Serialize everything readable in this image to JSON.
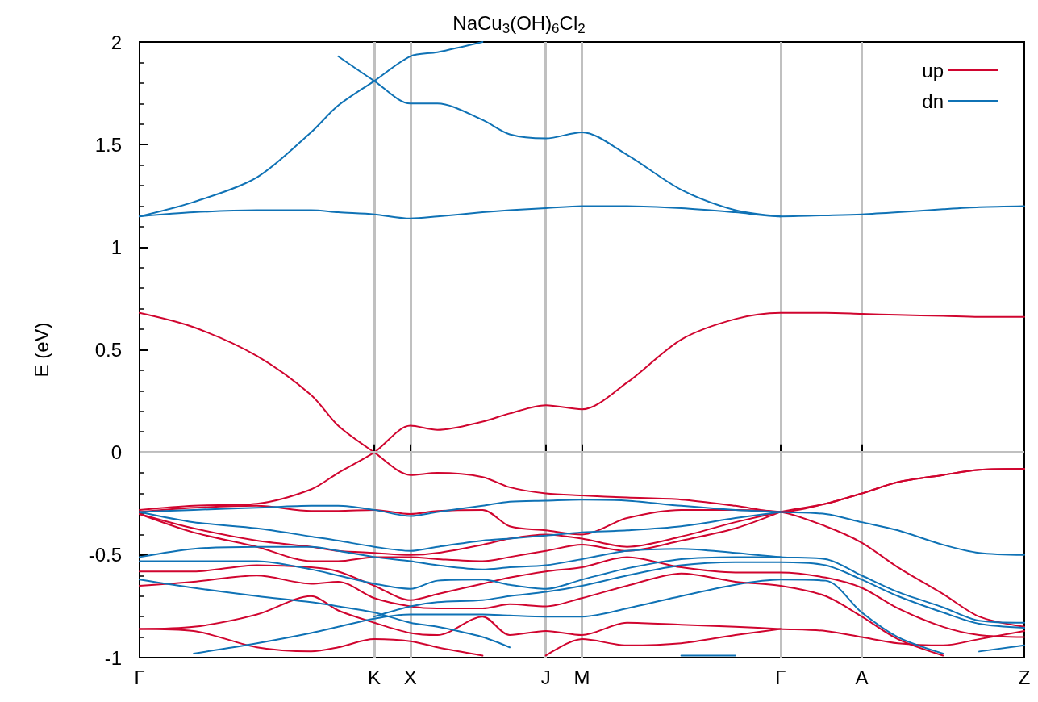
{
  "chart_data": {
    "type": "line",
    "title": "NaCu$_{3}$(OH)$_{6}$Cl$_{2}$",
    "ylabel": "E (eV)",
    "categories": [
      "Γ",
      null,
      null,
      null,
      null,
      null,
      null,
      null,
      null,
      null,
      null,
      null,
      null,
      null,
      null,
      null,
      null,
      null,
      null,
      null,
      null,
      null,
      null,
      null,
      null,
      null,
      "K",
      null,
      null,
      null,
      "X",
      null,
      null,
      null,
      null,
      null,
      null,
      null,
      null,
      null,
      null,
      null,
      null,
      null,
      null,
      "J",
      null,
      null,
      null,
      "M",
      null,
      null,
      null,
      null,
      null,
      null,
      null,
      null,
      null,
      null,
      null,
      null,
      null,
      null,
      null,
      null,
      null,
      null,
      null,
      null,
      null,
      "Γ",
      null,
      null,
      null,
      null,
      null,
      null,
      null,
      null,
      "A",
      null,
      null,
      null,
      null,
      null,
      null,
      null,
      null,
      null,
      null,
      null,
      null,
      null,
      null,
      null,
      null,
      null,
      "Z"
    ],
    "ylim": [
      -1,
      2
    ],
    "yticks": [
      -1,
      -0.5,
      0,
      0.5,
      1,
      1.5,
      2
    ],
    "grid": "x",
    "legend": "top right",
    "marker": "none",
    "ref_lines": [
      {
        "axis": "y",
        "value": 0,
        "color": "#c0c0c0"
      }
    ],
    "series": [
      {
        "name": "up",
        "color": "#d0052f",
        "values": [
          0.68,
          null,
          null,
          null,
          null,
          null,
          0.61,
          null,
          null,
          null,
          null,
          null,
          null,
          0.47,
          null,
          null,
          null,
          null,
          null,
          0.28,
          null,
          null,
          0.13,
          null,
          null,
          null,
          0.0,
          null,
          null,
          null,
          -0.11,
          null,
          null,
          -0.1,
          null,
          null,
          null,
          null,
          -0.12,
          null,
          null,
          -0.17,
          null,
          null,
          null,
          -0.2,
          null,
          null,
          null,
          -0.21,
          null,
          null,
          null,
          null,
          -0.22,
          null,
          null,
          null,
          null,
          null,
          -0.23,
          null,
          null,
          null,
          null,
          null,
          -0.26,
          null,
          null,
          null,
          null,
          -0.29,
          null,
          null,
          null,
          null,
          -0.25,
          null,
          null,
          null,
          -0.2,
          null,
          null,
          null,
          -0.145,
          null,
          null,
          null,
          null,
          -0.11,
          null,
          null,
          null,
          -0.085,
          null,
          null,
          null,
          null,
          -0.08
        ]
      },
      {
        "color": "#d0052f",
        "values": [
          -0.28,
          null,
          null,
          null,
          null,
          null,
          -0.26,
          null,
          null,
          null,
          null,
          null,
          null,
          -0.25,
          null,
          null,
          null,
          null,
          null,
          -0.18,
          null,
          null,
          -0.1,
          null,
          null,
          null,
          0.0,
          null,
          null,
          null,
          0.13,
          null,
          null,
          0.11,
          null,
          null,
          null,
          null,
          0.15,
          null,
          null,
          0.19,
          null,
          null,
          null,
          0.23,
          null,
          null,
          null,
          0.21,
          null,
          null,
          null,
          null,
          0.34,
          null,
          null,
          null,
          null,
          null,
          0.55,
          null,
          null,
          null,
          null,
          null,
          0.65,
          null,
          null,
          null,
          null,
          0.68,
          null,
          null,
          null,
          null,
          0.68,
          null,
          null,
          null,
          0.675,
          null,
          null,
          null,
          0.67,
          null,
          null,
          null,
          null,
          0.665,
          null,
          null,
          null,
          0.66,
          null,
          null,
          null,
          null,
          0.66
        ]
      },
      {
        "color": "#d0052f",
        "values": [
          -0.29,
          null,
          null,
          null,
          null,
          null,
          -0.27,
          null,
          null,
          null,
          null,
          null,
          null,
          -0.26,
          null,
          null,
          null,
          null,
          null,
          -0.285,
          null,
          null,
          -0.285,
          null,
          null,
          null,
          -0.28,
          null,
          null,
          null,
          -0.3,
          null,
          null,
          -0.285,
          null,
          null,
          null,
          null,
          -0.28,
          null,
          null,
          -0.36,
          null,
          null,
          null,
          -0.38,
          null,
          null,
          null,
          -0.4,
          null,
          null,
          null,
          null,
          -0.32,
          null,
          null,
          null,
          null,
          null,
          -0.28,
          null,
          null,
          null,
          null,
          null,
          -0.28,
          null,
          null,
          null,
          null,
          -0.29,
          null,
          null,
          null,
          null,
          -0.36,
          null,
          null,
          null,
          -0.44,
          null,
          null,
          null,
          -0.56,
          null,
          null,
          null,
          null,
          -0.69,
          null,
          null,
          null,
          -0.8,
          null,
          null,
          null,
          null,
          -0.85
        ]
      },
      {
        "color": "#d0052f",
        "values": [
          -0.3,
          null,
          null,
          null,
          null,
          null,
          -0.37,
          null,
          null,
          null,
          null,
          null,
          null,
          -0.43,
          null,
          null,
          null,
          null,
          null,
          -0.46,
          null,
          null,
          -0.48,
          null,
          null,
          null,
          -0.49,
          null,
          null,
          null,
          -0.5,
          null,
          null,
          -0.49,
          null,
          null,
          null,
          null,
          -0.45,
          null,
          null,
          -0.42,
          null,
          null,
          null,
          -0.4,
          null,
          null,
          null,
          -0.42,
          null,
          null,
          null,
          null,
          -0.46,
          null,
          null,
          null,
          null,
          null,
          -0.41,
          null,
          null,
          null,
          null,
          null,
          -0.34,
          null,
          null,
          null,
          null,
          -0.29,
          null,
          null,
          null,
          null,
          -0.25,
          null,
          null,
          null,
          -0.2,
          null,
          null,
          null,
          -0.145,
          null,
          null,
          null,
          null,
          -0.11,
          null,
          null,
          null,
          -0.085,
          null,
          null,
          null,
          null,
          -0.08
        ]
      },
      {
        "color": "#d0052f",
        "values": [
          -0.3,
          null,
          null,
          null,
          null,
          null,
          -0.39,
          null,
          null,
          null,
          null,
          null,
          null,
          -0.46,
          null,
          null,
          null,
          null,
          null,
          -0.53,
          null,
          null,
          -0.53,
          null,
          null,
          null,
          -0.51,
          null,
          null,
          null,
          -0.51,
          null,
          null,
          -0.52,
          null,
          null,
          null,
          null,
          -0.53,
          null,
          null,
          -0.51,
          null,
          null,
          null,
          -0.48,
          null,
          null,
          null,
          -0.45,
          null,
          null,
          null,
          null,
          -0.48,
          null,
          null,
          null,
          null,
          null,
          -0.43,
          null,
          null,
          null,
          null,
          null,
          -0.37,
          null,
          null,
          null,
          null,
          -0.29,
          null,
          null,
          null,
          null,
          null,
          null,
          null,
          null,
          null,
          null,
          null,
          null,
          null,
          null,
          null,
          null,
          null,
          null,
          null,
          null,
          null,
          null,
          null,
          null,
          null,
          null,
          null
        ]
      },
      {
        "color": "#d0052f",
        "values": [
          -0.58,
          null,
          null,
          null,
          null,
          null,
          -0.58,
          null,
          null,
          null,
          null,
          null,
          null,
          -0.55,
          null,
          null,
          null,
          null,
          null,
          -0.56,
          null,
          null,
          -0.58,
          null,
          null,
          null,
          -0.65,
          null,
          null,
          null,
          -0.72,
          null,
          null,
          -0.69,
          null,
          null,
          null,
          null,
          -0.64,
          null,
          null,
          -0.61,
          null,
          null,
          null,
          -0.58,
          null,
          null,
          null,
          -0.56,
          null,
          null,
          null,
          null,
          -0.51,
          null,
          null,
          null,
          null,
          null,
          -0.56,
          null,
          null,
          null,
          null,
          null,
          -0.585,
          null,
          null,
          null,
          null,
          -0.585,
          null,
          null,
          null,
          null,
          -0.61,
          null,
          null,
          null,
          -0.66,
          null,
          null,
          null,
          -0.76,
          null,
          null,
          null,
          null,
          -0.85,
          null,
          null,
          null,
          -0.89,
          null,
          null,
          null,
          null,
          -0.9
        ]
      },
      {
        "color": "#d0052f",
        "values": [
          -0.65,
          null,
          null,
          null,
          null,
          null,
          -0.63,
          null,
          null,
          null,
          null,
          null,
          null,
          -0.6,
          null,
          null,
          null,
          null,
          null,
          -0.64,
          null,
          null,
          -0.63,
          null,
          null,
          null,
          -0.71,
          null,
          null,
          null,
          -0.75,
          null,
          null,
          -0.76,
          null,
          null,
          null,
          null,
          -0.76,
          null,
          null,
          -0.74,
          null,
          null,
          null,
          -0.75,
          null,
          null,
          null,
          -0.71,
          null,
          null,
          null,
          null,
          -0.65,
          null,
          null,
          null,
          null,
          null,
          -0.59,
          null,
          null,
          null,
          null,
          null,
          -0.63,
          null,
          null,
          null,
          null,
          -0.65,
          null,
          null,
          null,
          null,
          -0.7,
          null,
          null,
          null,
          -0.8,
          null,
          null,
          null,
          -0.91,
          null,
          null,
          null,
          null,
          -0.99,
          null,
          null,
          null,
          null,
          null,
          null,
          null,
          null,
          null
        ]
      },
      {
        "color": "#d0052f",
        "values": [
          -0.86,
          null,
          null,
          null,
          null,
          null,
          -0.85,
          null,
          null,
          null,
          null,
          null,
          null,
          -0.79,
          null,
          null,
          null,
          null,
          null,
          -0.7,
          null,
          null,
          -0.77,
          null,
          null,
          null,
          -0.83,
          null,
          null,
          null,
          -0.88,
          null,
          null,
          -0.89,
          null,
          null,
          null,
          null,
          -0.8,
          null,
          null,
          -0.89,
          null,
          null,
          null,
          -0.87,
          null,
          null,
          null,
          -0.89,
          null,
          null,
          null,
          null,
          -0.83,
          null,
          null,
          null,
          null,
          null,
          -0.84,
          null,
          null,
          null,
          null,
          null,
          -0.85,
          null,
          null,
          null,
          null,
          -0.86,
          null,
          null,
          null,
          null,
          -0.87,
          null,
          null,
          null,
          -0.9,
          null,
          null,
          null,
          -0.93,
          null,
          null,
          null,
          null,
          -0.94,
          null,
          null,
          null,
          -0.91,
          null,
          null,
          null,
          null,
          -0.87
        ]
      },
      {
        "color": "#d0052f",
        "values": [
          -0.86,
          null,
          null,
          null,
          null,
          null,
          -0.87,
          null,
          null,
          null,
          null,
          null,
          null,
          -0.95,
          null,
          null,
          null,
          null,
          null,
          -0.97,
          null,
          null,
          -0.95,
          null,
          null,
          null,
          -0.91,
          null,
          null,
          null,
          -0.92,
          null,
          null,
          -0.95,
          null,
          null,
          null,
          null,
          -0.99,
          null,
          null,
          null,
          null,
          null,
          null,
          null,
          null,
          null,
          null,
          null,
          null,
          null,
          null,
          null,
          null,
          null,
          null,
          null,
          null,
          null,
          null,
          null,
          null,
          null,
          null,
          null,
          null,
          null,
          null,
          null,
          null,
          null,
          null,
          null,
          null,
          null,
          null,
          null,
          null,
          null,
          null,
          null,
          null,
          null,
          null,
          null,
          null,
          null,
          null,
          null,
          null,
          null,
          null,
          null,
          null,
          null,
          null,
          null,
          null
        ]
      },
      {
        "color": "#d0052f",
        "values": [
          null,
          null,
          null,
          null,
          null,
          null,
          null,
          null,
          null,
          null,
          null,
          null,
          null,
          null,
          null,
          null,
          null,
          null,
          null,
          null,
          null,
          null,
          null,
          null,
          null,
          null,
          null,
          null,
          null,
          null,
          null,
          null,
          null,
          null,
          null,
          null,
          null,
          null,
          null,
          null,
          null,
          null,
          null,
          null,
          null,
          -0.99,
          null,
          null,
          null,
          -0.91,
          null,
          null,
          null,
          null,
          -0.94,
          null,
          null,
          null,
          null,
          null,
          -0.93,
          null,
          null,
          null,
          null,
          null,
          -0.89,
          null,
          null,
          null,
          null,
          -0.86,
          null,
          null,
          null,
          null,
          null,
          null,
          null,
          null,
          null,
          null,
          null,
          null,
          null,
          null,
          null,
          null,
          null,
          null,
          null,
          null,
          null,
          null,
          null,
          null,
          null,
          null,
          null
        ]
      },
      {
        "name": "dn",
        "color": "#0f72b5",
        "values": [
          1.15,
          null,
          null,
          null,
          null,
          null,
          1.17,
          null,
          null,
          null,
          null,
          null,
          null,
          1.18,
          null,
          null,
          null,
          null,
          null,
          1.18,
          null,
          null,
          1.17,
          null,
          null,
          null,
          1.16,
          null,
          null,
          null,
          1.14,
          null,
          null,
          1.15,
          null,
          null,
          null,
          null,
          1.17,
          null,
          null,
          1.18,
          null,
          null,
          null,
          1.19,
          null,
          null,
          null,
          1.2,
          null,
          null,
          null,
          null,
          1.2,
          null,
          null,
          null,
          null,
          null,
          1.19,
          null,
          null,
          null,
          null,
          null,
          1.17,
          null,
          null,
          null,
          null,
          1.15,
          null,
          null,
          null,
          null,
          1.155,
          null,
          null,
          null,
          1.16,
          null,
          null,
          null,
          1.17,
          null,
          null,
          null,
          null,
          1.185,
          null,
          null,
          null,
          1.195,
          null,
          null,
          null,
          null,
          1.2
        ]
      },
      {
        "color": "#0f72b5",
        "values": [
          1.15,
          null,
          null,
          null,
          null,
          null,
          1.22,
          null,
          null,
          null,
          null,
          null,
          null,
          1.34,
          null,
          null,
          null,
          null,
          null,
          1.56,
          null,
          null,
          1.69,
          null,
          null,
          null,
          1.81,
          null,
          null,
          null,
          1.93,
          null,
          null,
          1.95,
          null,
          null,
          null,
          null,
          2.0,
          null,
          null,
          null,
          null,
          null,
          null,
          null,
          null,
          null,
          null,
          null,
          null,
          null,
          null,
          null,
          null,
          null,
          null,
          null,
          null,
          null,
          null,
          null,
          null,
          null,
          null,
          null,
          null,
          null,
          null,
          null,
          null,
          null,
          null,
          null,
          null,
          null,
          null,
          null,
          null,
          null,
          null,
          null,
          null,
          null,
          null,
          null,
          null,
          null,
          null,
          null,
          null,
          null,
          null,
          null,
          null,
          null,
          null,
          null,
          null
        ]
      },
      {
        "color": "#0f72b5",
        "values": [
          null,
          null,
          null,
          null,
          null,
          null,
          null,
          null,
          null,
          null,
          null,
          null,
          null,
          null,
          null,
          null,
          null,
          null,
          null,
          null,
          null,
          null,
          1.93,
          null,
          null,
          null,
          1.81,
          null,
          null,
          null,
          1.7,
          null,
          null,
          1.7,
          null,
          null,
          null,
          null,
          1.62,
          null,
          null,
          1.55,
          null,
          null,
          null,
          1.53,
          null,
          null,
          null,
          1.56,
          null,
          null,
          null,
          null,
          1.45,
          null,
          null,
          null,
          null,
          null,
          1.28,
          null,
          null,
          null,
          null,
          null,
          1.18,
          null,
          null,
          null,
          null,
          1.15,
          null,
          null,
          null,
          null,
          null,
          null,
          null,
          null,
          null,
          null,
          null,
          null,
          null,
          null,
          null,
          null,
          null,
          null,
          null,
          null,
          null,
          null,
          null,
          null,
          null,
          null,
          null
        ]
      },
      {
        "color": "#0f72b5",
        "values": [
          -0.29,
          null,
          null,
          null,
          null,
          null,
          -0.28,
          null,
          null,
          null,
          null,
          null,
          null,
          -0.27,
          null,
          null,
          null,
          null,
          null,
          -0.26,
          null,
          null,
          -0.26,
          null,
          null,
          null,
          -0.28,
          null,
          null,
          null,
          -0.31,
          null,
          null,
          -0.29,
          null,
          null,
          null,
          null,
          -0.26,
          null,
          null,
          -0.24,
          null,
          null,
          null,
          -0.235,
          null,
          null,
          null,
          -0.23,
          null,
          null,
          null,
          null,
          -0.235,
          null,
          null,
          null,
          null,
          null,
          -0.26,
          null,
          null,
          null,
          null,
          null,
          -0.28,
          null,
          null,
          null,
          null,
          -0.29,
          null,
          null,
          null,
          null,
          -0.3,
          null,
          null,
          null,
          -0.34,
          null,
          null,
          null,
          -0.38,
          null,
          null,
          null,
          null,
          -0.45,
          null,
          null,
          null,
          -0.49,
          null,
          null,
          null,
          null,
          -0.5
        ]
      },
      {
        "color": "#0f72b5",
        "values": [
          -0.29,
          null,
          null,
          null,
          null,
          null,
          -0.34,
          null,
          null,
          null,
          null,
          null,
          null,
          -0.37,
          null,
          null,
          null,
          null,
          null,
          -0.41,
          null,
          null,
          -0.43,
          null,
          null,
          null,
          -0.46,
          null,
          null,
          null,
          -0.48,
          null,
          null,
          -0.46,
          null,
          null,
          null,
          null,
          -0.43,
          null,
          null,
          -0.42,
          null,
          null,
          null,
          -0.405,
          null,
          null,
          null,
          -0.39,
          null,
          null,
          null,
          null,
          -0.38,
          null,
          null,
          null,
          null,
          null,
          -0.36,
          null,
          null,
          null,
          null,
          null,
          -0.32,
          null,
          null,
          null,
          null,
          -0.29,
          null,
          null,
          null,
          null,
          null,
          null,
          null,
          null,
          null,
          null,
          null,
          null,
          null,
          null,
          null,
          null,
          null,
          null,
          null,
          null,
          null,
          null,
          null,
          null,
          null,
          null,
          null
        ]
      },
      {
        "color": "#0f72b5",
        "values": [
          -0.51,
          null,
          null,
          null,
          null,
          null,
          -0.47,
          null,
          null,
          null,
          null,
          null,
          null,
          -0.46,
          null,
          null,
          null,
          null,
          null,
          -0.46,
          null,
          null,
          -0.48,
          null,
          null,
          null,
          -0.51,
          null,
          null,
          null,
          -0.53,
          null,
          null,
          -0.55,
          null,
          null,
          null,
          null,
          -0.57,
          null,
          null,
          -0.56,
          null,
          null,
          null,
          -0.55,
          null,
          null,
          null,
          -0.52,
          null,
          null,
          null,
          null,
          -0.48,
          null,
          null,
          null,
          null,
          null,
          -0.47,
          null,
          null,
          null,
          null,
          null,
          -0.49,
          null,
          null,
          null,
          null,
          -0.51,
          null,
          null,
          null,
          null,
          -0.52,
          null,
          null,
          null,
          -0.6,
          null,
          null,
          null,
          -0.68,
          null,
          null,
          null,
          null,
          -0.755,
          null,
          null,
          null,
          -0.82,
          null,
          null,
          null,
          null,
          -0.83
        ]
      },
      {
        "color": "#0f72b5",
        "values": [
          -0.53,
          null,
          null,
          null,
          null,
          null,
          -0.53,
          null,
          null,
          null,
          null,
          null,
          null,
          -0.53,
          null,
          null,
          null,
          null,
          null,
          -0.57,
          null,
          null,
          -0.6,
          null,
          null,
          null,
          -0.64,
          null,
          null,
          null,
          -0.665,
          null,
          null,
          -0.625,
          null,
          null,
          null,
          null,
          -0.62,
          null,
          null,
          -0.645,
          null,
          null,
          null,
          -0.665,
          null,
          null,
          null,
          -0.62,
          null,
          null,
          null,
          null,
          -0.565,
          null,
          null,
          null,
          null,
          null,
          -0.52,
          null,
          null,
          null,
          null,
          null,
          -0.51,
          null,
          null,
          null,
          null,
          -0.51,
          null,
          null,
          null,
          null,
          null,
          null,
          null,
          null,
          null,
          null,
          null,
          null,
          null,
          null,
          null,
          null,
          null,
          null,
          null,
          null,
          null,
          null,
          null,
          null,
          null,
          null,
          null
        ]
      },
      {
        "color": "#0f72b5",
        "values": [
          -0.62,
          null,
          null,
          null,
          null,
          null,
          -0.66,
          null,
          null,
          null,
          null,
          null,
          null,
          -0.7,
          null,
          null,
          null,
          null,
          null,
          -0.73,
          null,
          null,
          -0.75,
          null,
          null,
          null,
          -0.78,
          null,
          null,
          null,
          -0.83,
          null,
          null,
          -0.85,
          null,
          null,
          null,
          null,
          -0.9,
          null,
          null,
          -0.95,
          null,
          null,
          null,
          null,
          null,
          null,
          null,
          null,
          null,
          null,
          null,
          null,
          null,
          null,
          null,
          null,
          null,
          null,
          null,
          null,
          null,
          null,
          null,
          null,
          null,
          null,
          null,
          null,
          null,
          null,
          null,
          null,
          null,
          null,
          null,
          null,
          null,
          null,
          null,
          null,
          null,
          null,
          null,
          null,
          null,
          null,
          null,
          null,
          null,
          null,
          null,
          null,
          null,
          null,
          null,
          null,
          null
        ]
      },
      {
        "color": "#0f72b5",
        "values": [
          null,
          null,
          null,
          null,
          null,
          null,
          null,
          null,
          null,
          null,
          null,
          null,
          null,
          null,
          null,
          null,
          null,
          null,
          null,
          null,
          null,
          null,
          null,
          null,
          null,
          null,
          null,
          null,
          null,
          null,
          null,
          null,
          null,
          null,
          null,
          null,
          null,
          null,
          null,
          null,
          null,
          null,
          null,
          null,
          null,
          null,
          null,
          null,
          null,
          null,
          null,
          null,
          null,
          null,
          null,
          null,
          null,
          null,
          null,
          null,
          -0.99,
          null,
          null,
          null,
          null,
          null,
          -0.99,
          null,
          null,
          null,
          null,
          null,
          null,
          null,
          null,
          null,
          null,
          null,
          null,
          null,
          null,
          null,
          null,
          null,
          null,
          null,
          null,
          null,
          null,
          null,
          null,
          null,
          null,
          null,
          null,
          null,
          null,
          null,
          null
        ]
      },
      {
        "color": "#0f72b5",
        "values": [
          null,
          null,
          null,
          null,
          null,
          null,
          null,
          null,
          null,
          null,
          null,
          null,
          null,
          null,
          null,
          null,
          null,
          null,
          null,
          null,
          null,
          null,
          null,
          null,
          null,
          null,
          null,
          null,
          null,
          null,
          null,
          null,
          null,
          null,
          null,
          null,
          null,
          null,
          null,
          null,
          null,
          null,
          null,
          null,
          null,
          null,
          null,
          null,
          null,
          null,
          null,
          null,
          null,
          null,
          null,
          null,
          null,
          null,
          null,
          null,
          null,
          null,
          null,
          null,
          null,
          null,
          null,
          null,
          null,
          null,
          null,
          null,
          null,
          null,
          null,
          null,
          null,
          null,
          null,
          null,
          null,
          null,
          null,
          null,
          null,
          null,
          null,
          null,
          null,
          null,
          null,
          null,
          null,
          -0.97,
          null,
          null,
          null,
          null,
          -0.94
        ]
      },
      {
        "color": "#0f72b5",
        "values": [
          null,
          null,
          null,
          null,
          null,
          null,
          -0.98,
          null,
          null,
          null,
          null,
          null,
          null,
          -0.93,
          null,
          null,
          null,
          null,
          null,
          -0.88,
          null,
          null,
          -0.85,
          null,
          null,
          null,
          -0.81,
          null,
          null,
          null,
          -0.79,
          null,
          null,
          -0.79,
          null,
          null,
          null,
          null,
          -0.79,
          null,
          null,
          -0.795,
          null,
          null,
          null,
          -0.8,
          null,
          null,
          null,
          -0.8,
          null,
          null,
          null,
          null,
          -0.76,
          null,
          null,
          null,
          null,
          null,
          -0.7,
          null,
          null,
          null,
          null,
          null,
          -0.645,
          null,
          null,
          null,
          null,
          -0.62,
          null,
          null,
          null,
          null,
          -0.625,
          null,
          null,
          null,
          -0.78,
          null,
          null,
          null,
          -0.9,
          null,
          null,
          null,
          null,
          -0.98,
          null,
          null,
          null,
          null,
          null,
          null,
          null,
          null,
          null
        ]
      },
      {
        "color": "#0f72b5",
        "values": [
          null,
          null,
          null,
          null,
          null,
          null,
          null,
          null,
          null,
          null,
          null,
          null,
          null,
          null,
          null,
          null,
          null,
          null,
          null,
          null,
          null,
          null,
          null,
          null,
          null,
          null,
          -0.8,
          null,
          null,
          null,
          -0.75,
          null,
          null,
          -0.73,
          null,
          null,
          null,
          null,
          -0.72,
          null,
          null,
          -0.7,
          null,
          null,
          null,
          -0.68,
          null,
          null,
          null,
          -0.65,
          null,
          null,
          null,
          null,
          -0.6,
          null,
          null,
          null,
          null,
          null,
          -0.55,
          null,
          null,
          null,
          null,
          null,
          -0.535,
          null,
          null,
          null,
          null,
          -0.535,
          null,
          null,
          null,
          null,
          -0.55,
          null,
          null,
          null,
          -0.62,
          null,
          null,
          null,
          -0.7,
          null,
          null,
          null,
          null,
          -0.78,
          null,
          null,
          null,
          -0.835,
          null,
          null,
          null,
          null,
          -0.855
        ]
      }
    ]
  }
}
